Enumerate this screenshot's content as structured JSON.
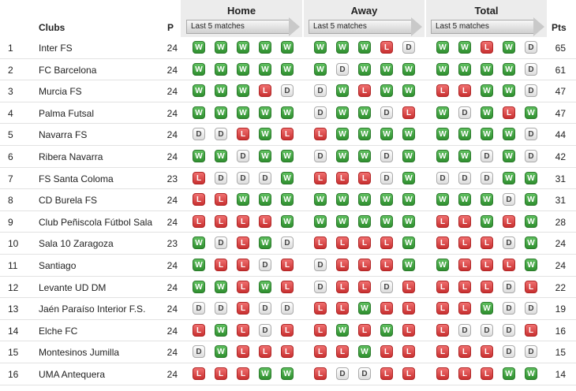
{
  "header": {
    "clubs": "Clubs",
    "played": "P",
    "points": "Pts",
    "home": "Home",
    "away": "Away",
    "total": "Total",
    "last5": "Last 5 matches"
  },
  "colors": {
    "win": "#3a9a3a",
    "loss": "#d43a3a",
    "draw": "#eeeeee"
  },
  "rows": [
    {
      "pos": "1",
      "club": "Inter FS",
      "p": "24",
      "home": [
        "W",
        "W",
        "W",
        "W",
        "W"
      ],
      "away": [
        "W",
        "W",
        "W",
        "L",
        "D"
      ],
      "total": [
        "W",
        "W",
        "L",
        "W",
        "D"
      ],
      "pts": "65"
    },
    {
      "pos": "2",
      "club": "FC Barcelona",
      "p": "24",
      "home": [
        "W",
        "W",
        "W",
        "W",
        "W"
      ],
      "away": [
        "W",
        "D",
        "W",
        "W",
        "W"
      ],
      "total": [
        "W",
        "W",
        "W",
        "W",
        "D"
      ],
      "pts": "61"
    },
    {
      "pos": "3",
      "club": "Murcia FS",
      "p": "24",
      "home": [
        "W",
        "W",
        "W",
        "L",
        "D"
      ],
      "away": [
        "D",
        "W",
        "L",
        "W",
        "W"
      ],
      "total": [
        "L",
        "L",
        "W",
        "W",
        "D"
      ],
      "pts": "47"
    },
    {
      "pos": "4",
      "club": "Palma Futsal",
      "p": "24",
      "home": [
        "W",
        "W",
        "W",
        "W",
        "W"
      ],
      "away": [
        "D",
        "W",
        "W",
        "D",
        "L"
      ],
      "total": [
        "W",
        "D",
        "W",
        "L",
        "W"
      ],
      "pts": "47"
    },
    {
      "pos": "5",
      "club": "Navarra FS",
      "p": "24",
      "home": [
        "D",
        "D",
        "L",
        "W",
        "L"
      ],
      "away": [
        "L",
        "W",
        "W",
        "W",
        "W"
      ],
      "total": [
        "W",
        "W",
        "W",
        "W",
        "D"
      ],
      "pts": "44"
    },
    {
      "pos": "6",
      "club": "Ribera Navarra",
      "p": "24",
      "home": [
        "W",
        "W",
        "D",
        "W",
        "W"
      ],
      "away": [
        "D",
        "W",
        "W",
        "D",
        "W"
      ],
      "total": [
        "W",
        "W",
        "D",
        "W",
        "D"
      ],
      "pts": "42"
    },
    {
      "pos": "7",
      "club": "FS Santa Coloma",
      "p": "23",
      "home": [
        "L",
        "D",
        "D",
        "D",
        "W"
      ],
      "away": [
        "L",
        "L",
        "L",
        "D",
        "W"
      ],
      "total": [
        "D",
        "D",
        "D",
        "W",
        "W"
      ],
      "pts": "31"
    },
    {
      "pos": "8",
      "club": "CD Burela FS",
      "p": "24",
      "home": [
        "L",
        "L",
        "W",
        "W",
        "W"
      ],
      "away": [
        "W",
        "W",
        "W",
        "W",
        "W"
      ],
      "total": [
        "W",
        "W",
        "W",
        "D",
        "W"
      ],
      "pts": "31"
    },
    {
      "pos": "9",
      "club": "Club Peñiscola Fútbol Sala",
      "p": "24",
      "home": [
        "L",
        "L",
        "L",
        "L",
        "W"
      ],
      "away": [
        "W",
        "W",
        "W",
        "W",
        "W"
      ],
      "total": [
        "L",
        "L",
        "W",
        "L",
        "W"
      ],
      "pts": "28"
    },
    {
      "pos": "10",
      "club": "Sala 10 Zaragoza",
      "p": "23",
      "home": [
        "W",
        "D",
        "L",
        "W",
        "D"
      ],
      "away": [
        "L",
        "L",
        "L",
        "L",
        "W"
      ],
      "total": [
        "L",
        "L",
        "L",
        "D",
        "W"
      ],
      "pts": "24"
    },
    {
      "pos": "11",
      "club": "Santiago",
      "p": "24",
      "home": [
        "W",
        "L",
        "L",
        "D",
        "L"
      ],
      "away": [
        "D",
        "L",
        "L",
        "L",
        "W"
      ],
      "total": [
        "W",
        "L",
        "L",
        "L",
        "W"
      ],
      "pts": "24"
    },
    {
      "pos": "12",
      "club": "Levante UD DM",
      "p": "24",
      "home": [
        "W",
        "W",
        "L",
        "W",
        "L"
      ],
      "away": [
        "D",
        "L",
        "L",
        "D",
        "L"
      ],
      "total": [
        "L",
        "L",
        "L",
        "D",
        "L"
      ],
      "pts": "22"
    },
    {
      "pos": "13",
      "club": "Jaén Paraíso Interior F.S.",
      "p": "24",
      "home": [
        "D",
        "D",
        "L",
        "D",
        "D"
      ],
      "away": [
        "L",
        "L",
        "W",
        "L",
        "L"
      ],
      "total": [
        "L",
        "L",
        "W",
        "D",
        "D"
      ],
      "pts": "19"
    },
    {
      "pos": "14",
      "club": "Elche FC",
      "p": "24",
      "home": [
        "L",
        "W",
        "L",
        "D",
        "L"
      ],
      "away": [
        "L",
        "W",
        "L",
        "W",
        "L"
      ],
      "total": [
        "L",
        "D",
        "D",
        "D",
        "L"
      ],
      "pts": "16"
    },
    {
      "pos": "15",
      "club": "Montesinos Jumilla",
      "p": "24",
      "home": [
        "D",
        "W",
        "L",
        "L",
        "L"
      ],
      "away": [
        "L",
        "L",
        "W",
        "L",
        "L"
      ],
      "total": [
        "L",
        "L",
        "L",
        "D",
        "D"
      ],
      "pts": "15"
    },
    {
      "pos": "16",
      "club": "UMA Antequera",
      "p": "24",
      "home": [
        "L",
        "L",
        "L",
        "W",
        "W"
      ],
      "away": [
        "L",
        "D",
        "D",
        "L",
        "L"
      ],
      "total": [
        "L",
        "L",
        "L",
        "W",
        "W"
      ],
      "pts": "14"
    }
  ]
}
